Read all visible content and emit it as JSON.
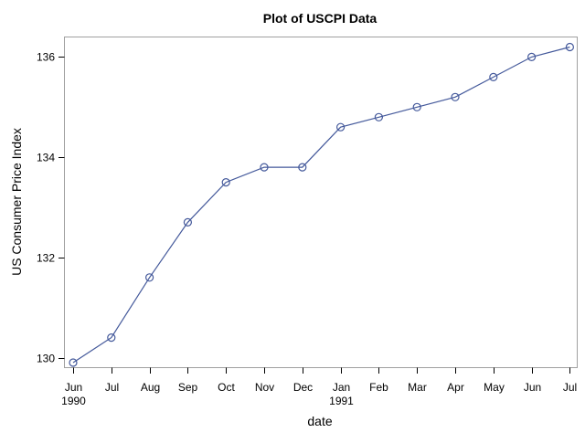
{
  "chart_data": {
    "type": "line",
    "title": "Plot of USCPI Data",
    "xlabel": "date",
    "ylabel": "US Consumer Price Index",
    "x_ticks": [
      {
        "label": "Jun",
        "sublabel": "1990"
      },
      {
        "label": "Jul",
        "sublabel": ""
      },
      {
        "label": "Aug",
        "sublabel": ""
      },
      {
        "label": "Sep",
        "sublabel": ""
      },
      {
        "label": "Oct",
        "sublabel": ""
      },
      {
        "label": "Nov",
        "sublabel": ""
      },
      {
        "label": "Dec",
        "sublabel": ""
      },
      {
        "label": "Jan",
        "sublabel": "1991"
      },
      {
        "label": "Feb",
        "sublabel": ""
      },
      {
        "label": "Mar",
        "sublabel": ""
      },
      {
        "label": "Apr",
        "sublabel": ""
      },
      {
        "label": "May",
        "sublabel": ""
      },
      {
        "label": "Jun",
        "sublabel": ""
      },
      {
        "label": "Jul",
        "sublabel": ""
      }
    ],
    "y_ticks": [
      130,
      132,
      134,
      136
    ],
    "ylim": [
      129.8,
      136.4
    ],
    "grid": false,
    "series": [
      {
        "x": [
          "1990-06",
          "1990-07",
          "1990-08",
          "1990-09",
          "1990-10",
          "1990-11",
          "1990-12",
          "1991-01",
          "1991-02",
          "1991-03",
          "1991-04",
          "1991-05",
          "1991-06",
          "1991-07"
        ],
        "values": [
          129.9,
          130.4,
          131.6,
          132.7,
          133.5,
          133.8,
          133.8,
          134.6,
          134.8,
          135.0,
          135.2,
          135.6,
          136.0,
          136.2
        ],
        "color": "#44599b",
        "marker": "circle"
      }
    ]
  }
}
